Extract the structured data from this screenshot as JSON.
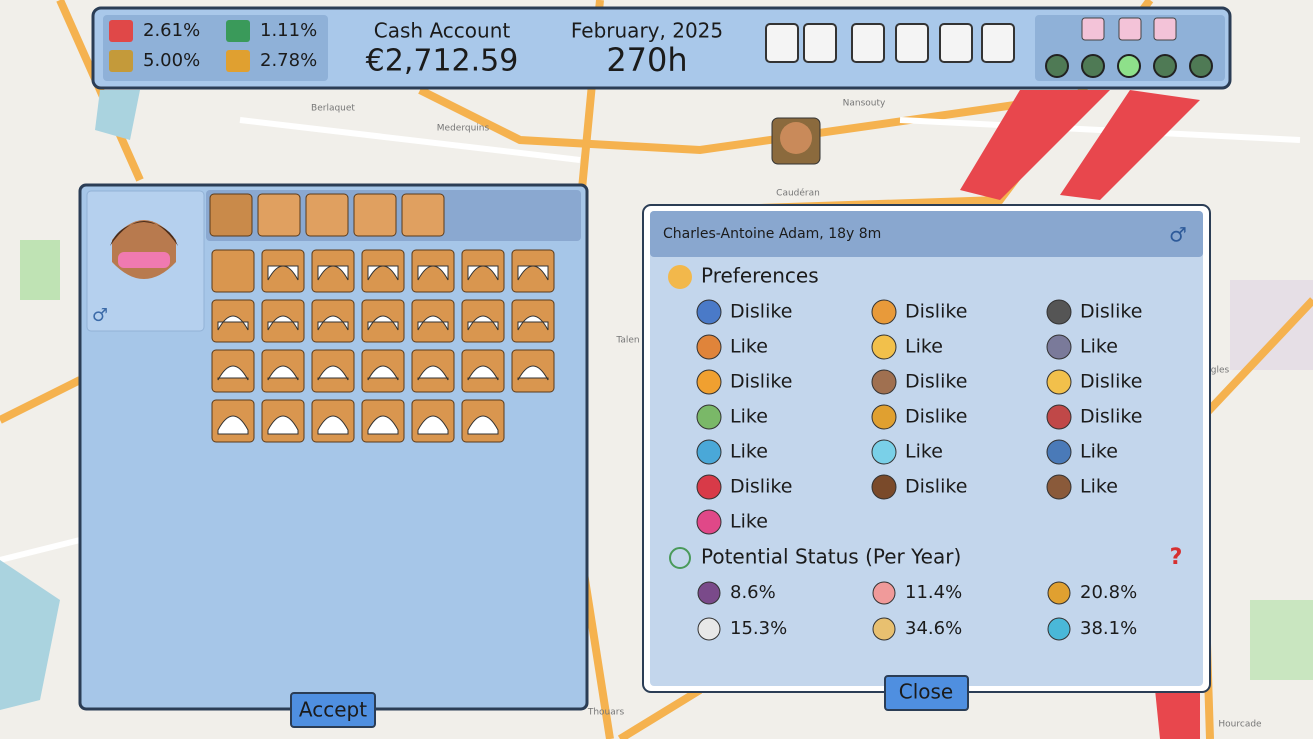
{
  "top_bar": {
    "rates": [
      "2.61%",
      "1.11%",
      "5.00%",
      "2.78%"
    ],
    "cash_label": "Cash Account",
    "cash_value": "€2,712.59",
    "date": "February, 2025",
    "hours": "270h"
  },
  "map_labels": [
    "Berlaquet",
    "Mederquins",
    "Nansouty",
    "Caudéran",
    "Talen",
    "gles",
    "Thouars",
    "Hourcade"
  ],
  "editor": {
    "gender": "♂",
    "accept": "Accept"
  },
  "profile": {
    "name": "Charles-Antoine Adam, 18y 8m",
    "gender": "♂",
    "preferences_title": "Preferences",
    "preferences": [
      "Dislike",
      "Dislike",
      "Dislike",
      "Like",
      "Like",
      "Like",
      "Dislike",
      "Dislike",
      "Dislike",
      "Like",
      "Dislike",
      "Dislike",
      "Like",
      "Like",
      "Like",
      "Dislike",
      "Dislike",
      "Like",
      "Like"
    ],
    "status_title": "Potential Status (Per Year)",
    "help": "?",
    "statuses": [
      "8.6%",
      "11.4%",
      "20.8%",
      "15.3%",
      "34.6%",
      "38.1%"
    ],
    "close": "Close"
  }
}
